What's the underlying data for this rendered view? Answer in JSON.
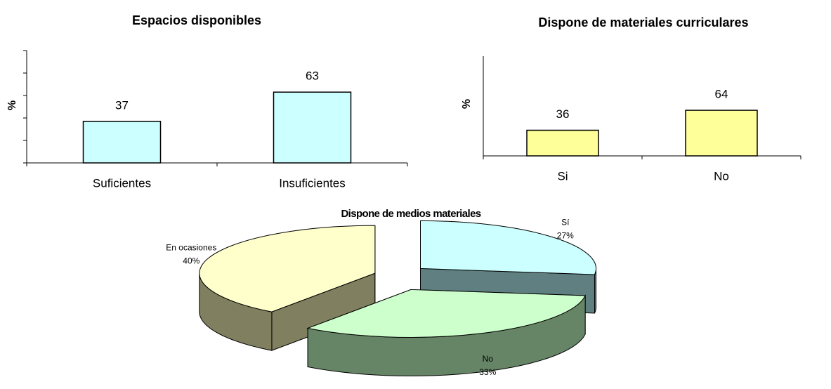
{
  "chart_data": [
    {
      "type": "bar",
      "title": "Espacios disponibles",
      "y_label": "%",
      "categories": [
        "Suficientes",
        "Insuficientes"
      ],
      "values": [
        37,
        63
      ],
      "color": "#ccffff",
      "ylim": [
        0,
        100
      ],
      "yticks": [
        0,
        20,
        40,
        60,
        80,
        100
      ]
    },
    {
      "type": "bar",
      "title": "Dispone de materiales curriculares",
      "y_label": "%",
      "categories": [
        "Si",
        "No"
      ],
      "values": [
        36,
        64
      ],
      "color": "#ffff99",
      "ylim": [
        0,
        140
      ]
    },
    {
      "type": "pie",
      "title": "Dispone de medios materiales",
      "categories": [
        "Sí",
        "No",
        "En ocasiones"
      ],
      "values": [
        27,
        33,
        40
      ],
      "value_labels": [
        "27%",
        "33%",
        "40%"
      ],
      "colors": [
        "#ccffff",
        "#ccffcc",
        "#ffffcc"
      ],
      "side_colors": [
        "#5f7f80",
        "#668466",
        "#807f60"
      ]
    }
  ]
}
